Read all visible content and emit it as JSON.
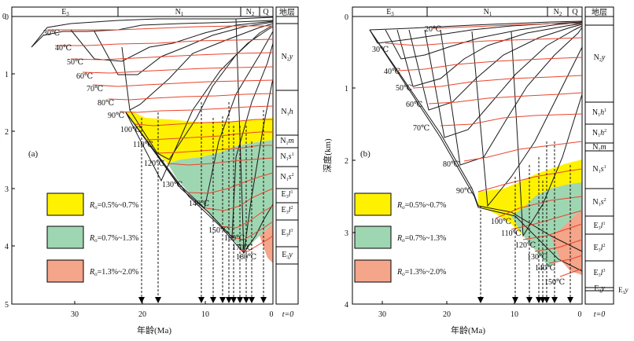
{
  "panel_a": {
    "tag": "(a)",
    "periods": [
      "E3",
      "N1",
      "N2",
      "Q"
    ],
    "strata_header": "地层",
    "strata": [
      {
        "base": "N",
        "sub": "2",
        "tail": "y"
      },
      {
        "base": "N",
        "sub": "1",
        "tail": "h"
      },
      {
        "base": "N",
        "sub": "1",
        "tail": "m"
      },
      {
        "base": "N",
        "sub": "1",
        "tail": "s",
        "sup": "1"
      },
      {
        "base": "N",
        "sub": "1",
        "tail": "s",
        "sup": "2"
      },
      {
        "base": "E",
        "sub": "3",
        "tail": "l",
        "sup": "1"
      },
      {
        "base": "E",
        "sub": "3",
        "tail": "l",
        "sup": "2"
      },
      {
        "base": "E",
        "sub": "3",
        "tail": "l",
        "sup": "3"
      },
      {
        "base": "E",
        "sub": "3",
        "tail": "y"
      }
    ],
    "y_axis_label": "深度(km)",
    "x_axis_label": "年龄(Ma)",
    "x_ticks": [
      "30",
      "20",
      "10",
      "0"
    ],
    "y_ticks": [
      "0",
      "1",
      "2",
      "3",
      "4",
      "5"
    ],
    "t0": "t=0",
    "isotherms": [
      "30℃",
      "40℃",
      "50℃",
      "60℃",
      "70℃",
      "80℃",
      "90℃",
      "100℃",
      "110℃",
      "120℃",
      "130℃",
      "140℃",
      "150℃",
      "160℃",
      "170℃",
      "180℃"
    ],
    "legend": [
      "Ro=0.5%~0.7%",
      "Ro=0.7%~1.3%",
      "Ro=1.3%~2.0%"
    ]
  },
  "panel_b": {
    "tag": "(b)",
    "periods": [
      "E3",
      "N1",
      "N2",
      "Q"
    ],
    "strata_header": "地层",
    "strata": [
      {
        "base": "N",
        "sub": "2",
        "tail": "y"
      },
      {
        "base": "N",
        "sub": "1",
        "tail": "h",
        "sup": "1"
      },
      {
        "base": "N",
        "sub": "1",
        "tail": "h",
        "sup": "2"
      },
      {
        "base": "N",
        "sub": "1",
        "tail": "m"
      },
      {
        "base": "N",
        "sub": "1",
        "tail": "s",
        "sup": "1"
      },
      {
        "base": "N",
        "sub": "1",
        "tail": "s",
        "sup": "2"
      },
      {
        "base": "E",
        "sub": "3",
        "tail": "l",
        "sup": "1"
      },
      {
        "base": "E",
        "sub": "3",
        "tail": "l",
        "sup": "2"
      },
      {
        "base": "E",
        "sub": "3",
        "tail": "l",
        "sup": "3"
      },
      {
        "base": "E",
        "sub": "3",
        "tail": "y"
      }
    ],
    "y_axis_label": "深度(km)",
    "x_axis_label": "年龄(Ma)",
    "x_ticks": [
      "30",
      "20",
      "10",
      "0"
    ],
    "y_ticks": [
      "0",
      "1",
      "2",
      "3",
      "4"
    ],
    "t0": "t=0",
    "isotherms": [
      "20℃",
      "30℃",
      "40℃",
      "50℃",
      "60℃",
      "70℃",
      "80℃",
      "90℃",
      "100℃",
      "110℃",
      "120℃",
      "130℃",
      "140℃",
      "150℃"
    ],
    "legend": [
      "Ro=0.5%~0.7%",
      "Ro=0.7%~1.3%",
      "Ro=1.3%~2.0%"
    ]
  },
  "colors": {
    "zone1": "#fff200",
    "zone2": "#9fd6b2",
    "zone3": "#f4a58a",
    "isotherm": "#e8442a"
  }
}
